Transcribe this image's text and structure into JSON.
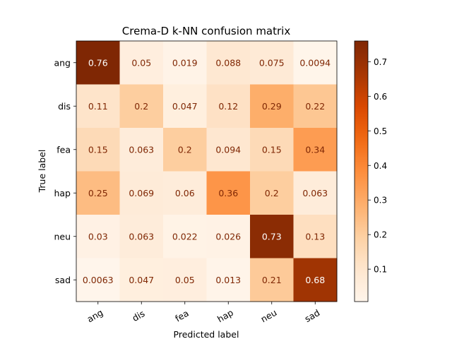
{
  "chart_data": {
    "type": "heatmap",
    "title": "Crema-D k-NN confusion matrix",
    "xlabel": "Predicted label",
    "ylabel": "True label",
    "x_categories": [
      "ang",
      "dis",
      "fea",
      "hap",
      "neu",
      "sad"
    ],
    "y_categories": [
      "ang",
      "dis",
      "fea",
      "hap",
      "neu",
      "sad"
    ],
    "values": [
      [
        0.76,
        0.05,
        0.019,
        0.088,
        0.075,
        0.0094
      ],
      [
        0.11,
        0.2,
        0.047,
        0.12,
        0.29,
        0.22
      ],
      [
        0.15,
        0.063,
        0.2,
        0.094,
        0.15,
        0.34
      ],
      [
        0.25,
        0.069,
        0.06,
        0.36,
        0.2,
        0.063
      ],
      [
        0.03,
        0.063,
        0.022,
        0.026,
        0.73,
        0.13
      ],
      [
        0.0063,
        0.047,
        0.05,
        0.013,
        0.21,
        0.68
      ]
    ],
    "colormap": "Oranges",
    "value_range": [
      0.0063,
      0.76
    ],
    "colorbar_ticks": [
      0.1,
      0.2,
      0.3,
      0.4,
      0.5,
      0.6,
      0.7
    ],
    "text_color_dark_cells": "#ffffff",
    "text_color_light_cells": "#7f2704"
  }
}
